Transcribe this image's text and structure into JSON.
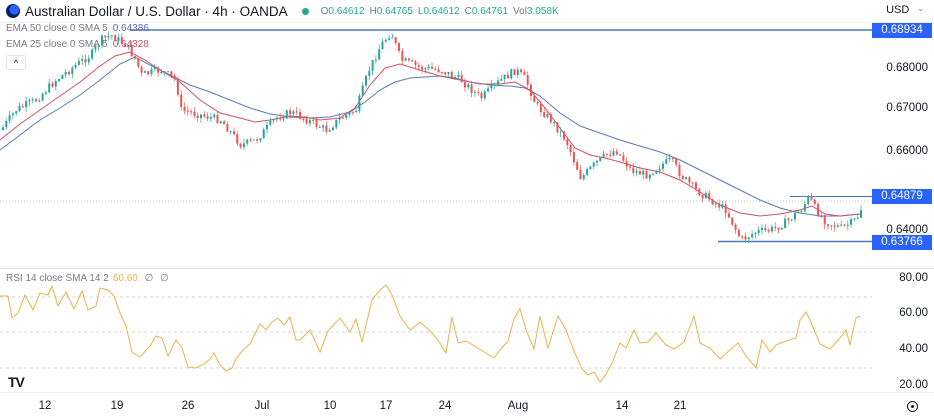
{
  "header": {
    "title": "Australian Dollar / U.S. Dollar · 4h · OANDA",
    "ohlc": {
      "open_label": "O",
      "open": "0.64612",
      "high_label": "H",
      "high": "0.64765",
      "low_label": "L",
      "low": "0.64612",
      "close_label": "C",
      "close": "0.64761",
      "vol_label": "Vol",
      "vol": "3.058K"
    },
    "currency": "USD",
    "currency_chevron": "⌄"
  },
  "legend": {
    "ema50_label": "EMA 50 close 0 SMA 5",
    "ema50_value": "0.64386",
    "ema25_label": "EMA 25 close 0 SMA 5",
    "ema25_value": "0.64328",
    "collapse_icon": "^"
  },
  "price_axis": {
    "ticks": [
      "0.68000",
      "0.67000",
      "0.66000",
      "0.64000"
    ],
    "tags": {
      "resistance_top": "0.68934",
      "resistance_mid": "0.64879",
      "support": "0.63766"
    }
  },
  "rsi": {
    "label": "RSI 14 close SMA 14 2",
    "value": "60.60",
    "extra1": "∅",
    "extra2": "∅",
    "ticks": [
      "80.00",
      "60.00",
      "40.00",
      "20.00"
    ]
  },
  "time_axis": {
    "labels": [
      "12",
      "19",
      "26",
      "Jul",
      "10",
      "17",
      "24",
      "Aug",
      "14",
      "21"
    ]
  },
  "branding": {
    "logo_text": "TV"
  },
  "colors": {
    "up": "#26a69a",
    "down": "#ef5350",
    "ema50": "#5b7bb3",
    "ema25": "#d0506a",
    "rsi": "#e6b54c",
    "level_line": "#4a78b8",
    "tag_bg": "#2962ff"
  },
  "chart_data": [
    {
      "type": "candlestick",
      "title": "Australian Dollar / U.S. Dollar · 4h · OANDA",
      "xlabel": "",
      "ylabel": "USD",
      "x_ticks": [
        "12",
        "19",
        "26",
        "Jul",
        "10",
        "17",
        "24",
        "Aug",
        "14",
        "21"
      ],
      "y_ticks": [
        0.68,
        0.67,
        0.66,
        0.64
      ],
      "ylim": [
        0.634,
        0.6905
      ],
      "last": {
        "open": 0.64612,
        "high": 0.64765,
        "low": 0.64612,
        "close": 0.64761,
        "volume": "3.058K"
      },
      "series": [
        {
          "name": "EMA 50 close 0 SMA 5",
          "last_value": 0.64386
        },
        {
          "name": "EMA 25 close 0 SMA 5",
          "last_value": 0.64328
        }
      ],
      "horizontal_levels": [
        0.68934,
        0.64879,
        0.63766
      ],
      "approx_close_path": [
        {
          "x": "12",
          "y": 0.6595
        },
        {
          "x": "19",
          "y": 0.6855
        },
        {
          "x": "26",
          "y": 0.664
        },
        {
          "x": "Jul",
          "y": 0.669
        },
        {
          "x": "10",
          "y": 0.668
        },
        {
          "x": "17",
          "y": 0.689
        },
        {
          "x": "24",
          "y": 0.676
        },
        {
          "x": "Aug",
          "y": 0.66
        },
        {
          "x": "14",
          "y": 0.643
        },
        {
          "x": "21",
          "y": 0.641
        },
        {
          "x": "last",
          "y": 0.64761
        }
      ],
      "grid": false
    },
    {
      "type": "line",
      "title": "RSI 14 close SMA 14 2",
      "series": [
        {
          "name": "RSI",
          "last_value": 60.6
        }
      ],
      "y_ticks": [
        80,
        60,
        40,
        20
      ],
      "ylim": [
        15,
        85
      ],
      "bands": [
        70,
        50,
        30
      ],
      "approx_values": [
        72,
        74,
        60,
        73,
        73,
        75,
        62,
        42,
        48,
        45,
        30,
        32,
        44,
        40,
        60,
        66,
        52,
        55,
        75,
        60,
        50,
        48,
        62,
        47,
        40,
        56,
        35,
        30,
        22,
        48,
        50,
        42,
        55,
        48,
        44,
        60,
        38,
        50,
        52,
        65,
        48,
        50,
        60.6
      ]
    }
  ]
}
